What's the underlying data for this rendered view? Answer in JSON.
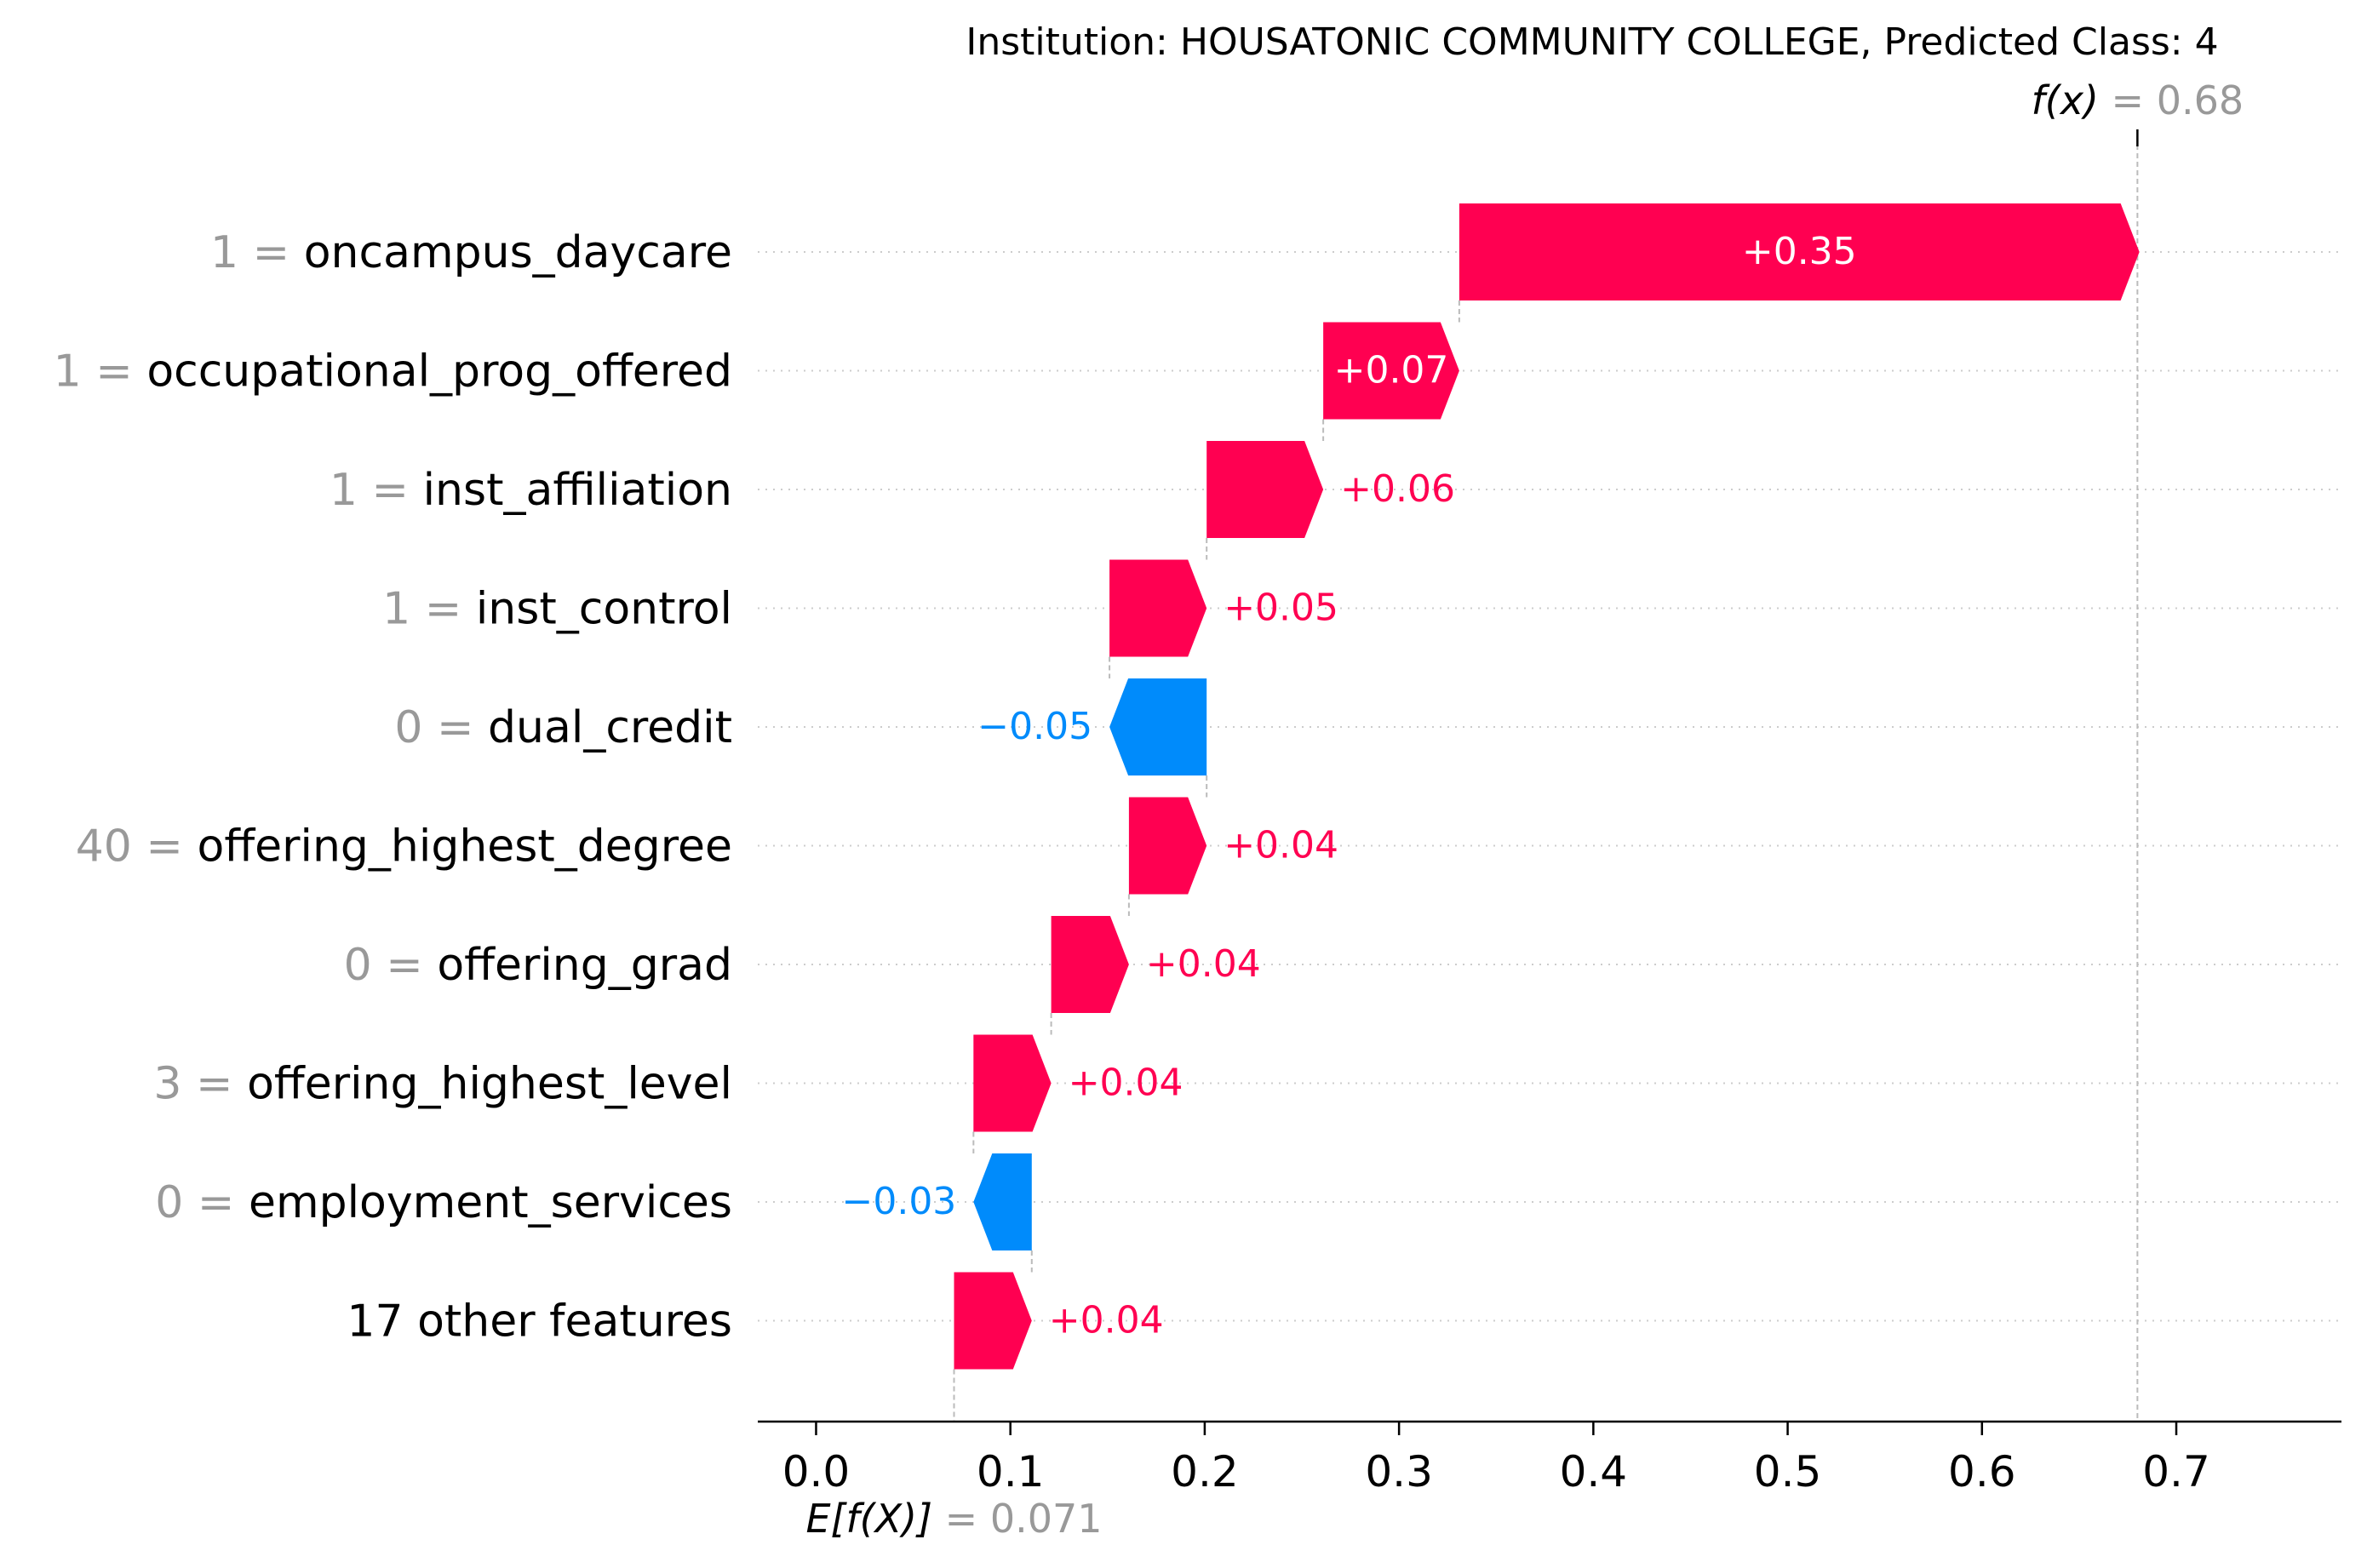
{
  "chart_data": {
    "type": "waterfall",
    "title": "Institution: HOUSATONIC COMMUNITY COLLEGE, Predicted Class: 4",
    "base_value": 0.071,
    "base_value_label": "0.071",
    "output_value": 0.68,
    "output_value_label": "0.68",
    "fx_symbol": "f(x)",
    "ef_symbol": "E[f(X)]",
    "xlim": [
      -0.03,
      0.785
    ],
    "xticks": [
      0.0,
      0.1,
      0.2,
      0.3,
      0.4,
      0.5,
      0.6,
      0.7
    ],
    "xtick_labels": [
      "0.0",
      "0.1",
      "0.2",
      "0.3",
      "0.4",
      "0.5",
      "0.6",
      "0.7"
    ],
    "grid": false,
    "colors": {
      "positive": "#ff0051",
      "negative": "#008bfb",
      "feature_value_text": "#999999",
      "feature_name_text": "#000000",
      "guide_line": "#bbbbbb",
      "row_grid": "#cccccc",
      "bar_label_inside": "#ffffff"
    },
    "features": [
      {
        "value": "1",
        "name": "oncampus_daycare",
        "contribution": 0.35,
        "label": "+0.35"
      },
      {
        "value": "1",
        "name": "occupational_prog_offered",
        "contribution": 0.07,
        "label": "+0.07"
      },
      {
        "value": "1",
        "name": "inst_affiliation",
        "contribution": 0.06,
        "label": "+0.06"
      },
      {
        "value": "1",
        "name": "inst_control",
        "contribution": 0.05,
        "label": "+0.05"
      },
      {
        "value": "0",
        "name": "dual_credit",
        "contribution": -0.05,
        "label": "−0.05"
      },
      {
        "value": "40",
        "name": "offering_highest_degree",
        "contribution": 0.04,
        "label": "+0.04"
      },
      {
        "value": "0",
        "name": "offering_grad",
        "contribution": 0.04,
        "label": "+0.04"
      },
      {
        "value": "3",
        "name": "offering_highest_level",
        "contribution": 0.04,
        "label": "+0.04"
      },
      {
        "value": "0",
        "name": "employment_services",
        "contribution": -0.03,
        "label": "−0.03"
      },
      {
        "value": "",
        "name": "17 other features",
        "contribution": 0.04,
        "label": "+0.04"
      }
    ]
  }
}
